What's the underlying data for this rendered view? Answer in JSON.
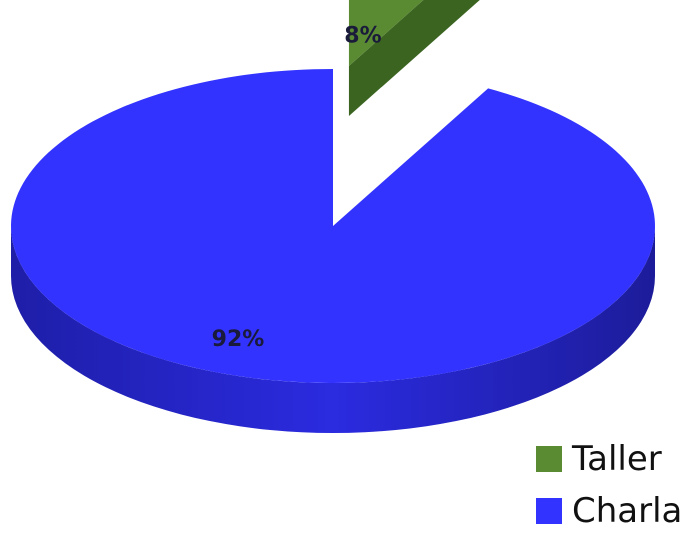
{
  "chart_data": {
    "type": "pie",
    "style": "3d",
    "categories": [
      "Taller",
      "Charla"
    ],
    "values": [
      8,
      92
    ],
    "value_labels": [
      "8%",
      "92%"
    ],
    "colors": [
      "#5a8a32",
      "#3333ff"
    ],
    "legend_position": "bottom-right",
    "title": ""
  }
}
